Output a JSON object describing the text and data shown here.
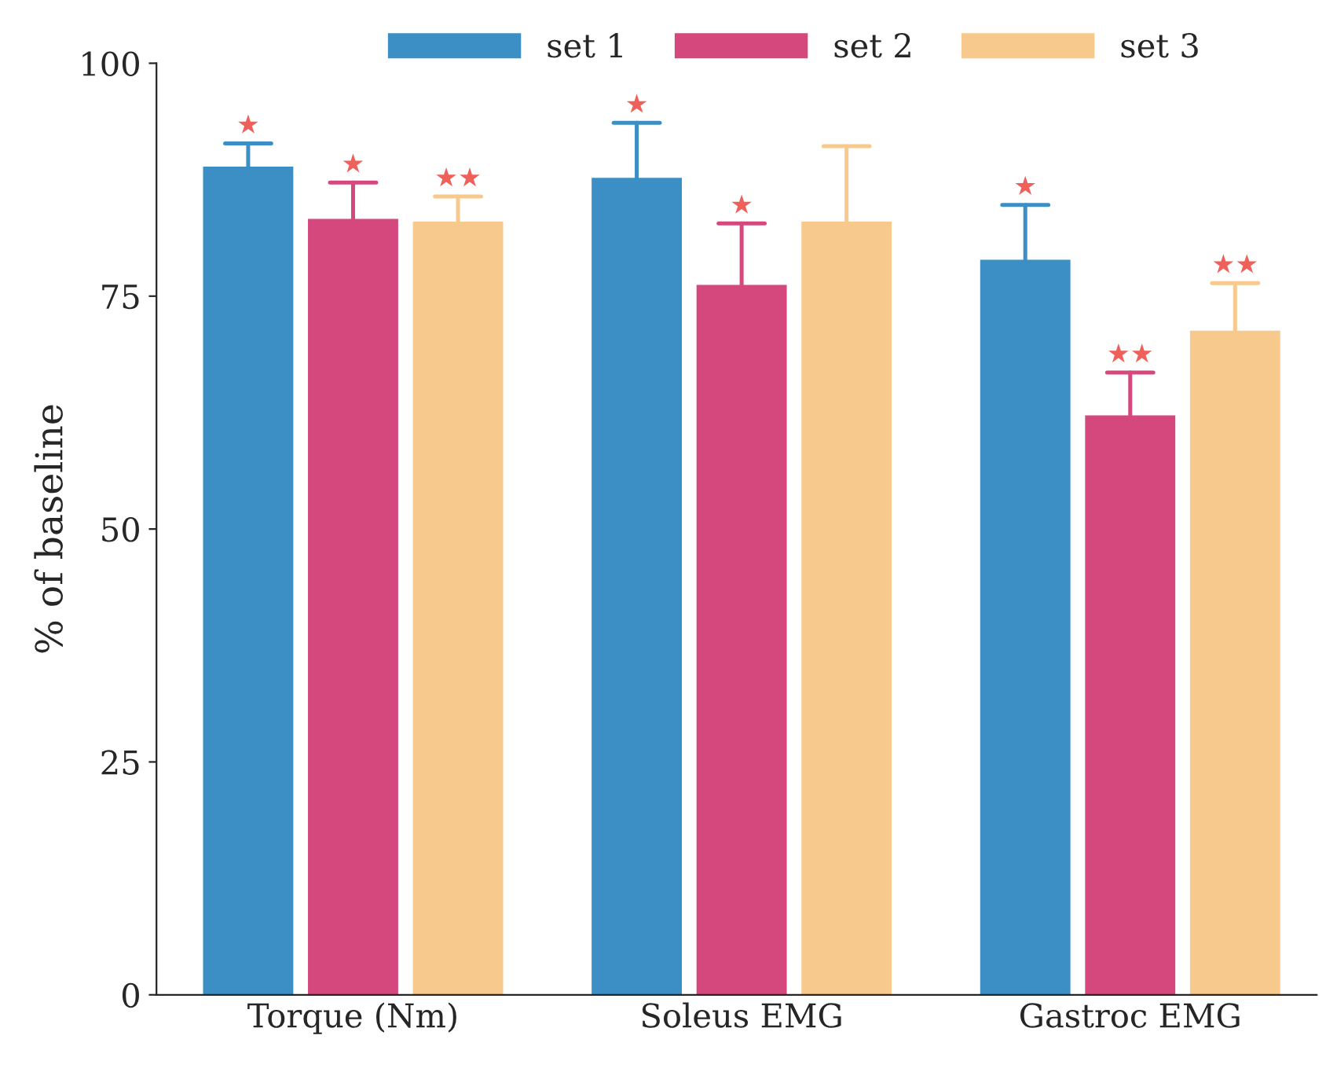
{
  "chart_data": {
    "type": "bar",
    "ylabel": "% of baseline",
    "categories": [
      "Torque (Nm)",
      "Soleus EMG",
      "Gastroc EMG"
    ],
    "series": [
      {
        "name": "set 1",
        "color": "#3b8fc5",
        "values": [
          88.9,
          87.7,
          78.9
        ],
        "errors": [
          [
            88.9,
            91.4
          ],
          [
            87.7,
            93.6
          ],
          [
            78.9,
            84.8
          ]
        ],
        "value_labels": [
          "★",
          "★",
          "★"
        ]
      },
      {
        "name": "set 2",
        "color": "#d4487d",
        "values": [
          83.3,
          76.2,
          62.2
        ],
        "errors": [
          [
            83.3,
            87.2
          ],
          [
            76.2,
            82.8
          ],
          [
            62.2,
            66.8
          ]
        ],
        "value_labels": [
          "★",
          "★",
          "★★"
        ]
      },
      {
        "name": "set 3",
        "color": "#f8c98c",
        "values": [
          83.0,
          83.0,
          71.3
        ],
        "errors": [
          [
            83.0,
            85.7
          ],
          [
            83.0,
            91.1
          ],
          [
            71.3,
            76.4
          ]
        ],
        "value_labels": [
          "★★",
          null,
          "★★"
        ]
      }
    ],
    "ylim": [
      0,
      100
    ],
    "yticks": [
      0,
      25,
      50,
      75,
      100
    ],
    "grid": false,
    "legend": "top"
  }
}
